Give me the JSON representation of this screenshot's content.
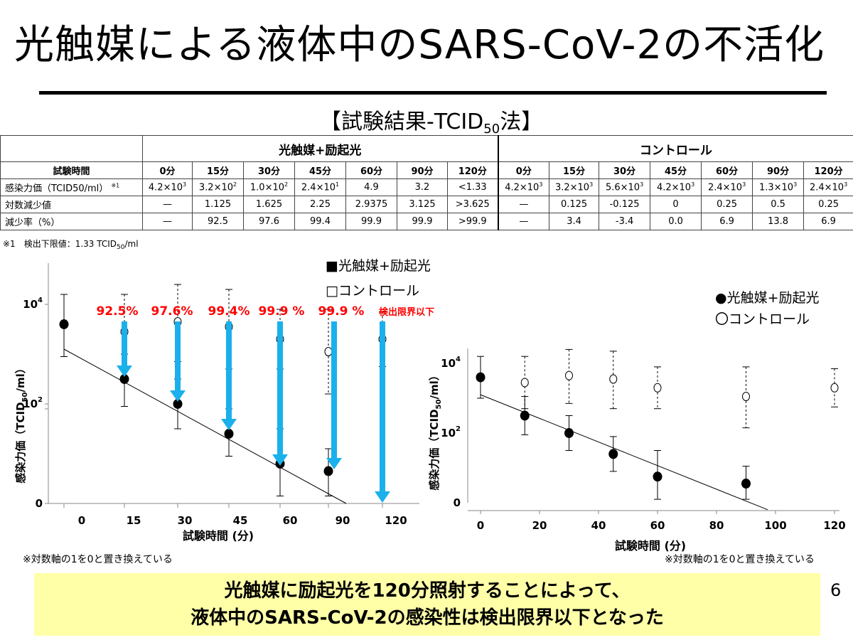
{
  "title": "光触媒による液体中のSARS-CoV-2の不活化",
  "subtitle": {
    "pre": "【試験結果-TCID",
    "sub": "50",
    "post": "法】"
  },
  "table": {
    "group_photo": "光触媒+励起光",
    "group_control": "コントロール",
    "row_headers": [
      "試験時間",
      "感染力価（TCID50/ml）",
      "対数減少値",
      "減少率（%）"
    ],
    "row_header_note": "※1",
    "times": [
      "0分",
      "15分",
      "30分",
      "45分",
      "60分",
      "90分",
      "120分"
    ],
    "photo": {
      "titer": [
        [
          "4.2×10",
          "3"
        ],
        [
          "3.2×10",
          "2"
        ],
        [
          "1.0×10",
          "2"
        ],
        [
          "2.4×10",
          "1"
        ],
        [
          "4.9",
          ""
        ],
        [
          "3.2",
          ""
        ],
        [
          "<1.33",
          ""
        ]
      ],
      "log": [
        "—",
        "1.125",
        "1.625",
        "2.25",
        "2.9375",
        "3.125",
        ">3.625"
      ],
      "rate": [
        "—",
        "92.5",
        "97.6",
        "99.4",
        "99.9",
        "99.9",
        ">99.9"
      ]
    },
    "control": {
      "titer": [
        [
          "4.2×10",
          "3"
        ],
        [
          "3.2×10",
          "3"
        ],
        [
          "5.6×10",
          "3"
        ],
        [
          "4.2×10",
          "3"
        ],
        [
          "2.4×10",
          "3"
        ],
        [
          "1.3×10",
          "3"
        ],
        [
          "2.4×10",
          "3"
        ]
      ],
      "log": [
        "—",
        "0.125",
        "-0.125",
        "0",
        "0.25",
        "0.5",
        "0.25"
      ],
      "rate": [
        "—",
        "3.4",
        "-3.4",
        "0.0",
        "6.9",
        "13.8",
        "6.9"
      ]
    }
  },
  "footnote": {
    "pre": "※1　検出下限値：1.33 TCID",
    "sub": "50",
    "post": "/ml"
  },
  "chart_data": [
    {
      "type": "scatter",
      "xlabel": "試験時間 (分)",
      "ylabel": {
        "pre": "感染力価（TCID",
        "sub": "50",
        "post": "/ml）"
      },
      "x_ticks": [
        "0",
        "15",
        "30",
        "45",
        "60",
        "90",
        "120"
      ],
      "y_ticks": [
        {
          "base": "0",
          "exp": ""
        },
        {
          "base": "10",
          "exp": "2"
        },
        {
          "base": "10",
          "exp": "4"
        }
      ],
      "legend": [
        "■光触媒+励起光",
        "□コントロール"
      ],
      "series": [
        {
          "name": "光触媒+励起光",
          "marker": "filled",
          "points": [
            {
              "x": "0",
              "y": 3.6,
              "lo": 2.95,
              "hi": 4.2
            },
            {
              "x": "15",
              "y": 2.5,
              "lo": 1.95,
              "hi": 3.0
            },
            {
              "x": "30",
              "y": 2.0,
              "lo": 1.5,
              "hi": 2.5
            },
            {
              "x": "45",
              "y": 1.4,
              "lo": 0.95,
              "hi": 1.9
            },
            {
              "x": "60",
              "y": 0.8,
              "lo": 0.15,
              "hi": 1.5
            },
            {
              "x": "90",
              "y": 0.65,
              "lo": 0.15,
              "hi": 1.1
            }
          ]
        },
        {
          "name": "コントロール",
          "marker": "open",
          "points": [
            {
              "x": "15",
              "y": 3.45,
              "lo": 2.65,
              "hi": 4.2
            },
            {
              "x": "30",
              "y": 3.65,
              "lo": 2.85,
              "hi": 4.4
            },
            {
              "x": "45",
              "y": 3.55,
              "lo": 2.7,
              "hi": 4.3
            },
            {
              "x": "60",
              "y": 3.3,
              "lo": 2.7,
              "hi": 3.9
            },
            {
              "x": "90",
              "y": 3.05,
              "lo": 2.2,
              "hi": 3.9
            },
            {
              "x": "120",
              "y": 3.3,
              "lo": 2.75,
              "hi": 3.85
            }
          ]
        }
      ],
      "annotations": [
        "92.5%",
        "97.6%",
        "99.4%",
        "99.9 %",
        "99.9 %",
        "検出限界以下"
      ],
      "colors": {
        "annotation": "#ff0000",
        "arrow": "#1ab0ec"
      }
    },
    {
      "type": "scatter",
      "xlabel": "試験時間 (分)",
      "ylabel": {
        "pre": "感染力価（TCID",
        "sub": "50",
        "post": "/ml）"
      },
      "x_ticks": [
        "0",
        "20",
        "40",
        "60",
        "80",
        "100",
        "120"
      ],
      "y_ticks": [
        {
          "base": "0",
          "exp": ""
        },
        {
          "base": "10",
          "exp": "2"
        },
        {
          "base": "10",
          "exp": "4"
        }
      ],
      "legend": [
        "●光触媒+励起光",
        "〇コントロール"
      ],
      "series": [
        {
          "name": "光触媒+励起光",
          "marker": "filled",
          "points": [
            {
              "x": 0,
              "y": 3.6,
              "lo": 3.0,
              "hi": 4.2
            },
            {
              "x": 15,
              "y": 2.5,
              "lo": 1.95,
              "hi": 3.05
            },
            {
              "x": 30,
              "y": 2.0,
              "lo": 1.5,
              "hi": 2.5
            },
            {
              "x": 45,
              "y": 1.4,
              "lo": 0.9,
              "hi": 1.9
            },
            {
              "x": 60,
              "y": 0.75,
              "lo": 0.1,
              "hi": 1.5
            },
            {
              "x": 90,
              "y": 0.55,
              "lo": 0.1,
              "hi": 1.05
            }
          ]
        },
        {
          "name": "コントロール",
          "marker": "open",
          "points": [
            {
              "x": 15,
              "y": 3.45,
              "lo": 2.7,
              "hi": 4.2
            },
            {
              "x": 30,
              "y": 3.65,
              "lo": 2.85,
              "hi": 4.4
            },
            {
              "x": 45,
              "y": 3.55,
              "lo": 2.7,
              "hi": 4.35
            },
            {
              "x": 60,
              "y": 3.3,
              "lo": 2.7,
              "hi": 3.9
            },
            {
              "x": 90,
              "y": 3.05,
              "lo": 2.15,
              "hi": 3.9
            },
            {
              "x": 120,
              "y": 3.3,
              "lo": 2.75,
              "hi": 3.85
            }
          ]
        }
      ]
    }
  ],
  "axis_note": "※対数軸の1を0と置き換えている",
  "conclusion": {
    "line1": "光触媒に励起光を120分照射することによって、",
    "line2": "液体中のSARS-CoV-2の感染性は検出限界以下となった"
  },
  "page_number": "6"
}
